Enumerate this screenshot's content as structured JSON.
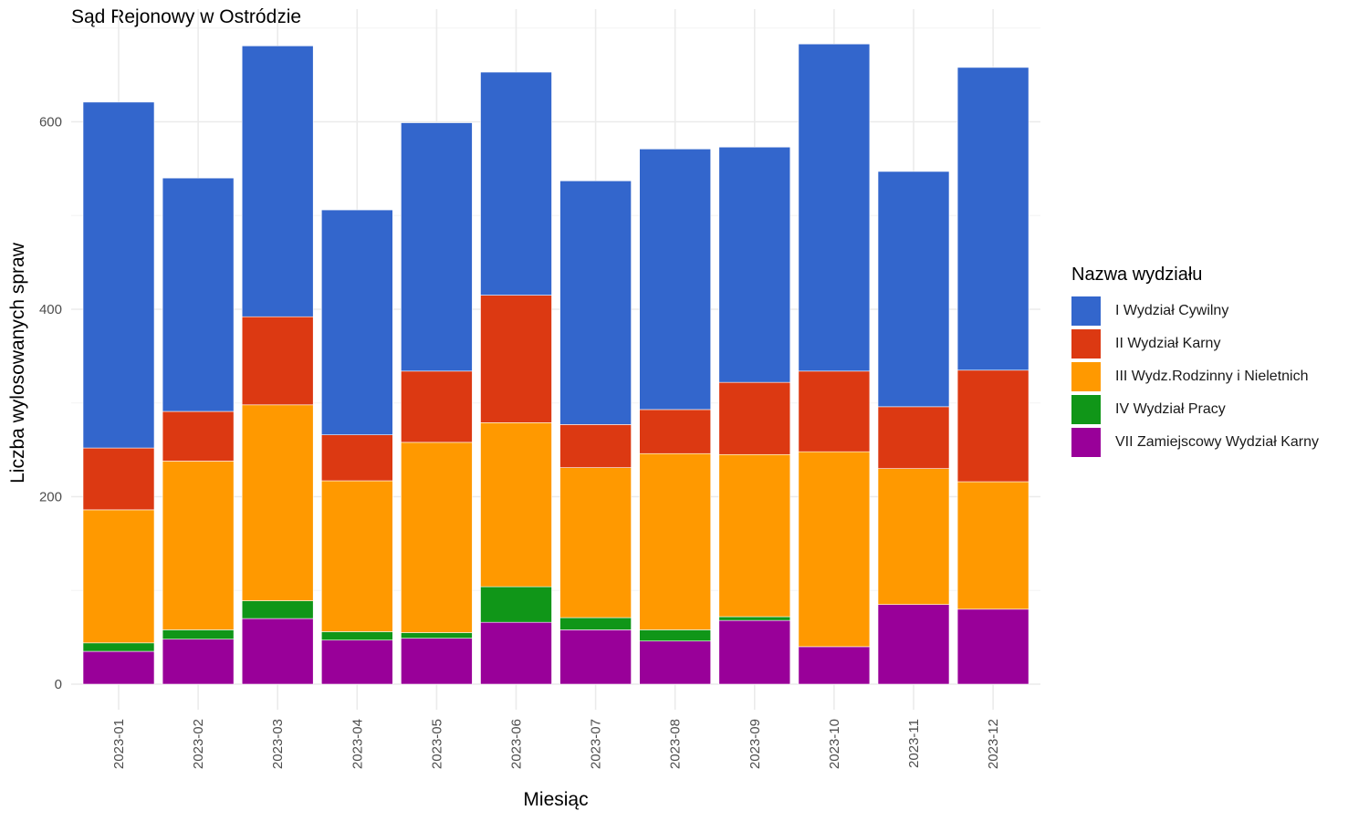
{
  "chart_data": {
    "type": "bar",
    "stacked": true,
    "title": "Sąd Rejonowy w Ostródzie",
    "xlabel": "Miesiąc",
    "ylabel": "Liczba wylosowanych spraw",
    "ylim": [
      0,
      700
    ],
    "yticks": [
      0,
      200,
      400,
      600
    ],
    "grid": true,
    "legend_title": "Nazwa wydziału",
    "legend_position": "right",
    "categories": [
      "2023-01",
      "2023-02",
      "2023-03",
      "2023-04",
      "2023-05",
      "2023-06",
      "2023-07",
      "2023-08",
      "2023-09",
      "2023-10",
      "2023-11",
      "2023-12"
    ],
    "series": [
      {
        "name": "VII Zamiejscowy Wydział Karny",
        "color": "#990099",
        "values": [
          35,
          48,
          70,
          47,
          49,
          66,
          58,
          46,
          68,
          40,
          85,
          80
        ]
      },
      {
        "name": "IV Wydział Pracy",
        "color": "#109618",
        "values": [
          9,
          10,
          19,
          9,
          6,
          38,
          13,
          12,
          4,
          0,
          0,
          0
        ]
      },
      {
        "name": "III Wydz.Rodzinny i Nieletnich",
        "color": "#ff9900",
        "values": [
          142,
          180,
          209,
          161,
          203,
          175,
          160,
          188,
          173,
          208,
          145,
          136
        ]
      },
      {
        "name": "II Wydział Karny",
        "color": "#dc3912",
        "values": [
          66,
          53,
          94,
          49,
          76,
          136,
          46,
          47,
          77,
          86,
          66,
          119
        ]
      },
      {
        "name": "I Wydział Cywilny",
        "color": "#3366cc",
        "values": [
          369,
          249,
          289,
          240,
          265,
          238,
          260,
          278,
          251,
          349,
          251,
          323
        ]
      }
    ],
    "legend_order": [
      "I Wydział Cywilny",
      "II Wydział Karny",
      "III Wydz.Rodzinny i Nieletnich",
      "IV Wydział Pracy",
      "VII Zamiejscowy Wydział Karny"
    ]
  }
}
